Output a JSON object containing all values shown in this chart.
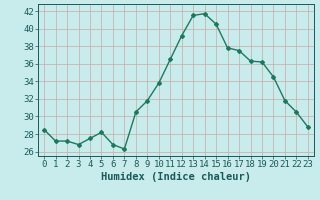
{
  "x": [
    0,
    1,
    2,
    3,
    4,
    5,
    6,
    7,
    8,
    9,
    10,
    11,
    12,
    13,
    14,
    15,
    16,
    17,
    18,
    19,
    20,
    21,
    22,
    23
  ],
  "y": [
    28.5,
    27.2,
    27.2,
    26.8,
    27.5,
    28.2,
    26.8,
    26.3,
    30.5,
    31.8,
    33.8,
    36.5,
    39.2,
    41.5,
    41.7,
    40.5,
    37.8,
    37.5,
    36.3,
    36.2,
    34.5,
    31.8,
    30.5,
    28.8
  ],
  "line_color": "#1a7a5e",
  "marker": "D",
  "marker_size": 2.0,
  "bg_color": "#c8ecec",
  "grid_color": "#aad4d4",
  "xlabel": "Humidex (Indice chaleur)",
  "ylim": [
    25.5,
    42.8
  ],
  "xlim": [
    -0.5,
    23.5
  ],
  "yticks": [
    26,
    28,
    30,
    32,
    34,
    36,
    38,
    40,
    42
  ],
  "xticks": [
    0,
    1,
    2,
    3,
    4,
    5,
    6,
    7,
    8,
    9,
    10,
    11,
    12,
    13,
    14,
    15,
    16,
    17,
    18,
    19,
    20,
    21,
    22,
    23
  ],
  "font_color": "#1a5a5a",
  "tick_fontsize": 6.5,
  "xlabel_fontsize": 7.5
}
